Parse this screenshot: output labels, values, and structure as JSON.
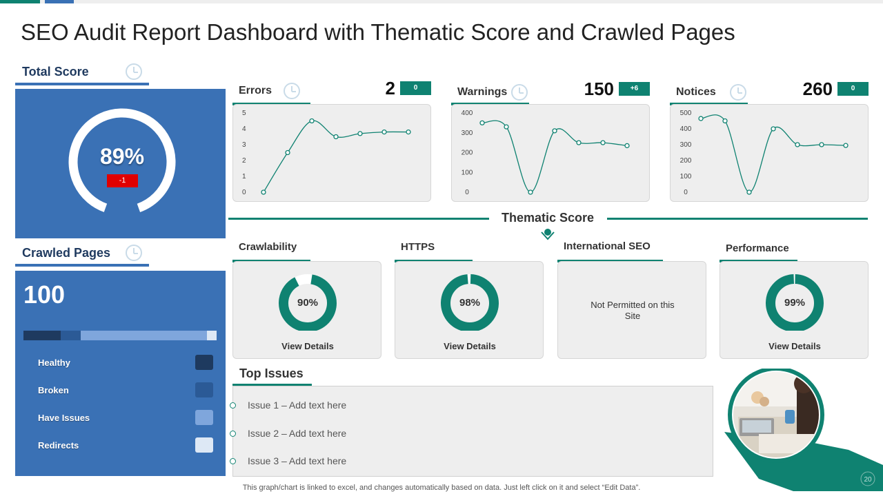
{
  "title": "SEO Audit Report Dashboard with Thematic Score and Crawled Pages",
  "total_score": {
    "title": "Total Score",
    "icon": "clock-icon",
    "value": "89%",
    "fraction": 0.89,
    "delta": "-1",
    "delta_color": "#e00000"
  },
  "crawled_pages": {
    "title": "Crawled Pages",
    "icon": "clock-icon",
    "value": "100",
    "legend": [
      {
        "label": "Healthy",
        "color": "#1e3a5f"
      },
      {
        "label": "Broken",
        "color": "#2b5a96"
      },
      {
        "label": "Have Issues",
        "color": "#7fa6dc"
      },
      {
        "label": "Redirects",
        "color": "#dde8f5"
      }
    ],
    "bar_shares": [
      0.19,
      0.1,
      0.64,
      0.05
    ]
  },
  "metrics": [
    {
      "label": "Errors",
      "value": "2",
      "badge": "0"
    },
    {
      "label": "Warnings",
      "value": "150",
      "badge": "+6"
    },
    {
      "label": "Notices",
      "value": "260",
      "badge": "0"
    }
  ],
  "chart_data": [
    {
      "type": "line",
      "title": "Errors",
      "y_ticks": [
        "5",
        "4",
        "3",
        "2",
        "1",
        "0"
      ],
      "ylim": [
        0,
        5
      ],
      "values": [
        0,
        2.5,
        4.5,
        3.5,
        3.7,
        3.8,
        3.8
      ]
    },
    {
      "type": "line",
      "title": "Warnings",
      "y_ticks": [
        "400",
        "300",
        "200",
        "100",
        "0"
      ],
      "ylim": [
        0,
        400
      ],
      "values": [
        350,
        330,
        0,
        310,
        250,
        250,
        235
      ]
    },
    {
      "type": "line",
      "title": "Notices",
      "y_ticks": [
        "500",
        "400",
        "300",
        "200",
        "100",
        "0"
      ],
      "ylim": [
        0,
        500
      ],
      "values": [
        465,
        450,
        0,
        400,
        300,
        300,
        295
      ]
    }
  ],
  "thematic": {
    "title": "Thematic Score",
    "cards": [
      {
        "label": "Crawlability",
        "pct": "90%",
        "fraction": 0.9,
        "link": "View Details"
      },
      {
        "label": "HTTPS",
        "pct": "98%",
        "fraction": 0.98,
        "link": "View Details"
      },
      {
        "label": "International SEO",
        "message": "Not Permitted on this Site"
      },
      {
        "label": "Performance",
        "pct": "99%",
        "fraction": 0.99,
        "link": "View Details"
      }
    ]
  },
  "top_issues": {
    "title": "Top Issues",
    "items": [
      "Issue 1 – Add text here",
      "Issue 2 – Add text here",
      "Issue 3 – Add text here"
    ]
  },
  "footer": "This graph/chart is linked to excel,  and changes automatically based on data. Just left click on it and select “Edit Data”.",
  "page_number": "20",
  "colors": {
    "accent": "#0f8271",
    "blue": "#3a71b5",
    "navy": "#1f3a5f"
  }
}
